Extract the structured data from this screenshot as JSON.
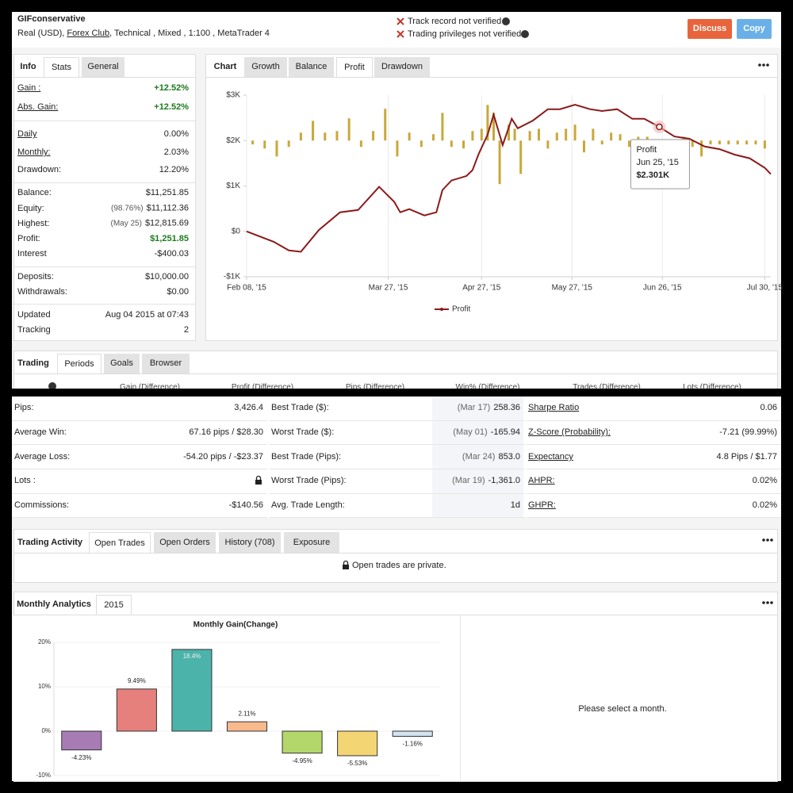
{
  "header": {
    "account": "GIFconservative",
    "details_prefix": "Real (USD), ",
    "broker": "Forex Club",
    "details_suffix": ", Technical , Mixed , 1:100 , MetaTrader 4",
    "warnings": [
      "Track record not verified",
      "Trading privileges not verified"
    ],
    "buttons": [
      "Discuss",
      "Copy"
    ]
  },
  "info": {
    "tabs": [
      "Info",
      "Stats",
      "General"
    ],
    "rows": [
      {
        "label": "Gain :",
        "value": "+12.52%"
      },
      {
        "label": "Abs. Gain:",
        "value": "+12.52%"
      },
      {
        "label": "Daily",
        "value": "0.00%"
      },
      {
        "label": "Monthly:",
        "value": "2.03%"
      },
      {
        "label": "Drawdown:",
        "value": "12.20%"
      },
      {
        "label": "Balance:",
        "value": "$11,251.85"
      },
      {
        "label": "Equity:",
        "note": "(98.76%)",
        "value": "$11,112.36"
      },
      {
        "label": "Highest:",
        "note": "(May 25)",
        "value": "$12,815.69"
      },
      {
        "label": "Profit:",
        "value": "$1,251.85"
      },
      {
        "label": "Interest",
        "value": "-$400.03"
      },
      {
        "label": "Deposits:",
        "value": "$10,000.00"
      },
      {
        "label": "Withdrawals:",
        "value": "$0.00"
      },
      {
        "label": "Updated",
        "value": "Aug 04 2015 at 07:43"
      },
      {
        "label": "Tracking",
        "value": "2"
      }
    ]
  },
  "chart_tabs": [
    "Chart",
    "Growth",
    "Balance",
    "Profit",
    "Drawdown"
  ],
  "trading": {
    "tabs": [
      "Trading",
      "Periods",
      "Goals",
      "Browser"
    ],
    "columns": [
      "Gain (Difference)",
      "Profit (Difference)",
      "Pips (Difference)",
      "Win% (Difference)",
      "Trades (Difference)",
      "Lots (Difference)"
    ]
  },
  "stats": [
    [
      {
        "label": "Pips:",
        "value": "3,426.4"
      },
      {
        "label": "Average Win:",
        "value": "67.16 pips / $28.30"
      },
      {
        "label": "Average Loss:",
        "value": "-54.20 pips / -$23.37"
      },
      {
        "label": "Lots :"
      },
      {
        "label": "Commissions:",
        "value": "-$140.56"
      }
    ],
    [
      {
        "label": "Best Trade ($):",
        "note": "(Mar 17)",
        "value": "258.36"
      },
      {
        "label": "Worst Trade ($):",
        "note": "(May 01)",
        "value": "-165.94"
      },
      {
        "label": "Best Trade (Pips):",
        "note": "(Mar 24)",
        "value": "853.0"
      },
      {
        "label": "Worst Trade (Pips):",
        "note": "(Mar 19)",
        "value": "-1,361.0"
      },
      {
        "label": "Avg. Trade Length:",
        "value": "1d"
      }
    ],
    [
      {
        "label": "Sharpe Ratio",
        "value": "0.06"
      },
      {
        "label": "Z-Score (Probability):",
        "value": "-7.21 (99.99%)"
      },
      {
        "label": "Expectancy",
        "value": "4.8 Pips / $1.77"
      },
      {
        "label": "AHPR:",
        "value": "0.02%"
      },
      {
        "label": "GHPR:",
        "value": "0.02%"
      }
    ]
  ],
  "activity": {
    "tabs": [
      "Trading Activity",
      "Open Trades",
      "Open Orders",
      "History (708)",
      "Exposure"
    ],
    "message": "Open trades are private."
  },
  "monthly": {
    "tabs": [
      "Monthly Analytics",
      "2015"
    ],
    "message": "Please select a month."
  },
  "chart_data": [
    {
      "type": "line",
      "xlim": [
        "2015-02-08",
        "2015-08-01"
      ],
      "xticks": [
        {
          "value": "2015-02-08",
          "label": "Feb 08, '15"
        },
        {
          "value": "2015-03-27",
          "label": "Mar 27, '15"
        },
        {
          "value": "2015-04-27",
          "label": "Apr 27, '15"
        },
        {
          "value": "2015-05-27",
          "label": "May 27, '15"
        },
        {
          "value": "2015-06-26",
          "label": "Jun 26, '15"
        },
        {
          "value": "2015-07-30",
          "label": "Jul 30, '15"
        }
      ],
      "ylim": [
        -1000,
        3000
      ],
      "yticks": [
        {
          "value": -1000,
          "label": "-$1K"
        },
        {
          "value": 0,
          "label": "$0"
        },
        {
          "value": 1000,
          "label": "$1K"
        },
        {
          "value": 2000,
          "label": "$2K"
        },
        {
          "value": 3000,
          "label": "$3K"
        }
      ],
      "y2lim": [
        -600,
        200
      ],
      "grid": "x",
      "legend": "bottom",
      "series": [
        {
          "name": "Profit",
          "color": "#8b1a1a",
          "x": [
            "2015-02-08",
            "2015-02-17",
            "2015-02-22",
            "2015-02-26",
            "2015-03-04",
            "2015-03-11",
            "2015-03-17",
            "2015-03-24",
            "2015-03-29",
            "2015-03-31",
            "2015-04-03",
            "2015-04-08",
            "2015-04-12",
            "2015-04-14",
            "2015-04-17",
            "2015-04-22",
            "2015-04-24",
            "2015-04-26",
            "2015-04-29",
            "2015-05-01",
            "2015-05-04",
            "2015-05-07",
            "2015-05-09",
            "2015-05-14",
            "2015-05-19",
            "2015-05-23",
            "2015-05-28",
            "2015-06-02",
            "2015-06-06",
            "2015-06-11",
            "2015-06-16",
            "2015-06-20",
            "2015-06-25",
            "2015-06-30",
            "2015-07-05",
            "2015-07-10",
            "2015-07-15",
            "2015-07-20",
            "2015-07-25",
            "2015-07-30",
            "2015-08-01"
          ],
          "values": [
            0,
            -230,
            -420,
            -450,
            30,
            420,
            470,
            980,
            650,
            420,
            490,
            350,
            420,
            910,
            1120,
            1220,
            1350,
            1700,
            2130,
            2570,
            1900,
            2480,
            2270,
            2440,
            2690,
            2690,
            2790,
            2690,
            2650,
            2690,
            2480,
            2480,
            2301,
            2090,
            2040,
            1870,
            1810,
            1690,
            1610,
            1400,
            1260
          ]
        },
        {
          "type": "bar",
          "axis": "y2",
          "color": "#c9a83a",
          "x": [
            "2015-02-10",
            "2015-02-14",
            "2015-02-18",
            "2015-02-22",
            "2015-02-26",
            "2015-03-02",
            "2015-03-06",
            "2015-03-10",
            "2015-03-14",
            "2015-03-18",
            "2015-03-22",
            "2015-03-26",
            "2015-03-30",
            "2015-04-03",
            "2015-04-07",
            "2015-04-11",
            "2015-04-14",
            "2015-04-17",
            "2015-04-21",
            "2015-04-24",
            "2015-04-27",
            "2015-04-29",
            "2015-05-01",
            "2015-05-03",
            "2015-05-06",
            "2015-05-08",
            "2015-05-10",
            "2015-05-13",
            "2015-05-16",
            "2015-05-19",
            "2015-05-22",
            "2015-05-25",
            "2015-05-28",
            "2015-05-31",
            "2015-06-03",
            "2015-06-06",
            "2015-06-09",
            "2015-06-12",
            "2015-06-15",
            "2015-06-18",
            "2015-06-21",
            "2015-06-24",
            "2015-06-27",
            "2015-06-30",
            "2015-07-03",
            "2015-07-06",
            "2015-07-09",
            "2015-07-12",
            "2015-07-15",
            "2015-07-18",
            "2015-07-21",
            "2015-07-24",
            "2015-07-27",
            "2015-07-30"
          ],
          "values": [
            -17,
            -35,
            -70,
            -28,
            35,
            87,
            35,
            42,
            98,
            -28,
            42,
            140,
            -70,
            35,
            -28,
            28,
            122,
            -28,
            -35,
            42,
            52,
            157,
            122,
            -192,
            70,
            52,
            -147,
            42,
            52,
            -35,
            35,
            52,
            70,
            -52,
            52,
            -17,
            35,
            28,
            -28,
            17,
            17,
            -28,
            -17,
            -28,
            17,
            -28,
            -70,
            -17,
            -17,
            -17,
            -17,
            -17,
            -17,
            -35
          ]
        }
      ],
      "tooltip": {
        "x": {
          "value": "2015-06-25",
          "label": "Jun 25, '15"
        },
        "y": {
          "value": 2301,
          "label": "$2.301K"
        }
      }
    },
    {
      "type": "bar",
      "title": "Monthly Gain(Change)",
      "categories": [
        null,
        null,
        null,
        null,
        null,
        null,
        null
      ],
      "values": [
        -4.23,
        9.49,
        18.4,
        2.11,
        -4.95,
        -5.53,
        -1.16
      ],
      "value_labels": [
        "-4.23%",
        "9.49%",
        "18.4%",
        "2.11%",
        "-4.95%",
        "-5.53%",
        "-1.16%"
      ],
      "colors": [
        "#a77cb5",
        "#e6807d",
        "#4cb3ab",
        "#f8b98c",
        "#b3d76b",
        "#f4d574",
        "#d3e3f0"
      ],
      "ylim": [
        -10,
        20
      ],
      "yticks": [
        {
          "value": -10,
          "label": "-10%"
        },
        {
          "value": 0,
          "label": "0%"
        },
        {
          "value": 10,
          "label": "10%"
        },
        {
          "value": 20,
          "label": "20%"
        }
      ],
      "grid": true
    }
  ]
}
